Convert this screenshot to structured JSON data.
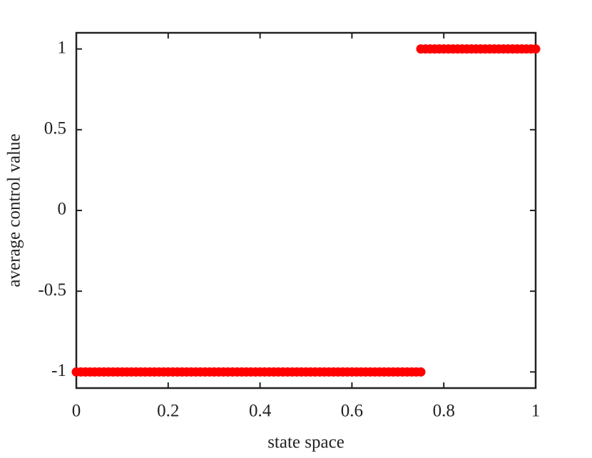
{
  "chart_data": {
    "type": "scatter",
    "xlabel": "state space",
    "ylabel": "average control value",
    "xlim": [
      0,
      1
    ],
    "ylim": [
      -1.1,
      1.1
    ],
    "xticks": [
      0,
      0.2,
      0.4,
      0.6,
      0.8,
      1
    ],
    "yticks": [
      -1,
      -0.5,
      0,
      0.5,
      1
    ],
    "series": [
      {
        "color": "#ff0000",
        "x": [
          0,
          0.01,
          0.02,
          0.03,
          0.04,
          0.05,
          0.06,
          0.07,
          0.08,
          0.09,
          0.1,
          0.11,
          0.12,
          0.13,
          0.14,
          0.15,
          0.16,
          0.17,
          0.18,
          0.19,
          0.2,
          0.21,
          0.22,
          0.23,
          0.24,
          0.25,
          0.26,
          0.27,
          0.28,
          0.29,
          0.3,
          0.31,
          0.32,
          0.33,
          0.34,
          0.35,
          0.36,
          0.37,
          0.38,
          0.39,
          0.4,
          0.41,
          0.42,
          0.43,
          0.44,
          0.45,
          0.46,
          0.47,
          0.48,
          0.49,
          0.5,
          0.51,
          0.52,
          0.53,
          0.54,
          0.55,
          0.56,
          0.57,
          0.58,
          0.59,
          0.6,
          0.61,
          0.62,
          0.63,
          0.64,
          0.65,
          0.66,
          0.67,
          0.68,
          0.69,
          0.7,
          0.71,
          0.72,
          0.73,
          0.74,
          0.75
        ],
        "values": [
          -1,
          -1,
          -1,
          -1,
          -1,
          -1,
          -1,
          -1,
          -1,
          -1,
          -1,
          -1,
          -1,
          -1,
          -1,
          -1,
          -1,
          -1,
          -1,
          -1,
          -1,
          -1,
          -1,
          -1,
          -1,
          -1,
          -1,
          -1,
          -1,
          -1,
          -1,
          -1,
          -1,
          -1,
          -1,
          -1,
          -1,
          -1,
          -1,
          -1,
          -1,
          -1,
          -1,
          -1,
          -1,
          -1,
          -1,
          -1,
          -1,
          -1,
          -1,
          -1,
          -1,
          -1,
          -1,
          -1,
          -1,
          -1,
          -1,
          -1,
          -1,
          -1,
          -1,
          -1,
          -1,
          -1,
          -1,
          -1,
          -1,
          -1,
          -1,
          -1,
          -1,
          -1,
          -1,
          -1
        ]
      },
      {
        "color": "#ff0000",
        "x": [
          0.75,
          0.76,
          0.77,
          0.78,
          0.79,
          0.8,
          0.81,
          0.82,
          0.83,
          0.84,
          0.85,
          0.86,
          0.87,
          0.88,
          0.89,
          0.9,
          0.91,
          0.92,
          0.93,
          0.94,
          0.95,
          0.96,
          0.97,
          0.98,
          0.99,
          1
        ],
        "values": [
          1,
          1,
          1,
          1,
          1,
          1,
          1,
          1,
          1,
          1,
          1,
          1,
          1,
          1,
          1,
          1,
          1,
          1,
          1,
          1,
          1,
          1,
          1,
          1,
          1,
          1
        ]
      }
    ]
  }
}
